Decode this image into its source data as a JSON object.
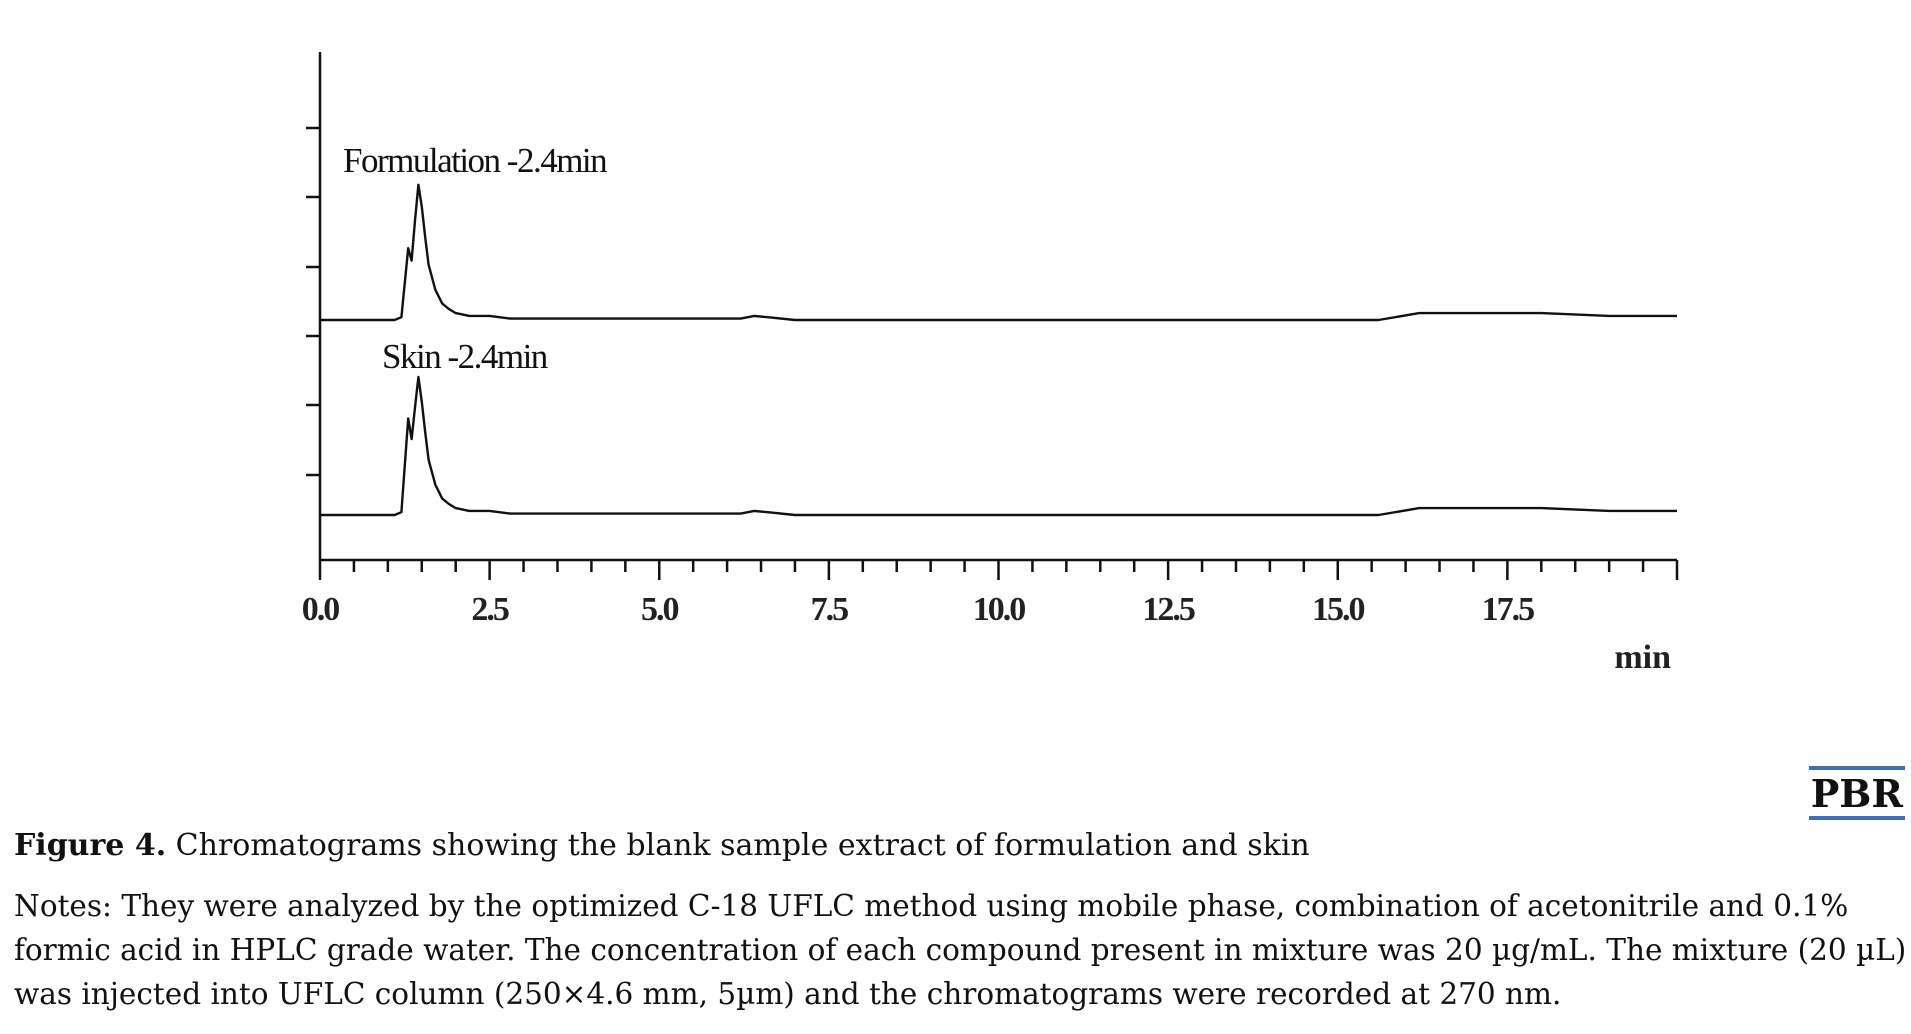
{
  "chart_data": {
    "type": "line",
    "xlabel": "min",
    "x_ticks": [
      "0.0",
      "2.5",
      "5.0",
      "7.5",
      "10.0",
      "12.5",
      "15.0",
      "17.5"
    ],
    "xlim": [
      0,
      20
    ],
    "grid": false,
    "series": [
      {
        "annotation": "Formulation -2.4min",
        "x": [
          0.0,
          1.1,
          1.2,
          1.3,
          1.35,
          1.4,
          1.45,
          1.5,
          1.55,
          1.6,
          1.7,
          1.8,
          1.9,
          2.0,
          2.2,
          2.5,
          2.8,
          3.0,
          3.5,
          4.5,
          6.2,
          6.4,
          6.6,
          7.0,
          15.6,
          16.2,
          18.0,
          19.0,
          20.0
        ],
        "y": [
          0.0,
          0.0,
          0.02,
          0.52,
          0.43,
          0.72,
          0.98,
          0.82,
          0.6,
          0.4,
          0.22,
          0.12,
          0.08,
          0.05,
          0.03,
          0.03,
          0.01,
          0.01,
          0.01,
          0.01,
          0.01,
          0.03,
          0.02,
          0.0,
          0.0,
          0.05,
          0.05,
          0.03,
          0.03
        ]
      },
      {
        "annotation": "Skin -2.4min",
        "x": [
          0.0,
          1.1,
          1.2,
          1.3,
          1.35,
          1.4,
          1.45,
          1.5,
          1.55,
          1.6,
          1.7,
          1.8,
          1.9,
          2.0,
          2.2,
          2.5,
          2.8,
          3.0,
          3.5,
          4.5,
          6.2,
          6.4,
          6.6,
          7.0,
          15.6,
          16.2,
          18.0,
          19.0,
          20.0
        ],
        "y": [
          0.0,
          0.0,
          0.02,
          0.7,
          0.55,
          0.78,
          1.0,
          0.82,
          0.6,
          0.4,
          0.22,
          0.12,
          0.08,
          0.05,
          0.03,
          0.03,
          0.01,
          0.01,
          0.01,
          0.01,
          0.01,
          0.03,
          0.02,
          0.0,
          0.0,
          0.05,
          0.05,
          0.03,
          0.03
        ]
      }
    ]
  },
  "logo": {
    "text": "PBR"
  },
  "caption": {
    "label": "Figure 4.",
    "text": " Chromatograms showing the blank sample extract of formulation and skin"
  },
  "notes": {
    "lines": [
      "Notes: They were analyzed by the optimized C-18 UFLC method using mobile phase, combination of acetonitrile and 0.1%",
      "formic acid in HPLC grade water. The concentration of each compound present in mixture was 20 µg/mL. The mixture (20 µL)",
      "was injected into UFLC column (250×4.6 mm, 5µm) and the chromatograms were recorded at 270 nm."
    ]
  }
}
